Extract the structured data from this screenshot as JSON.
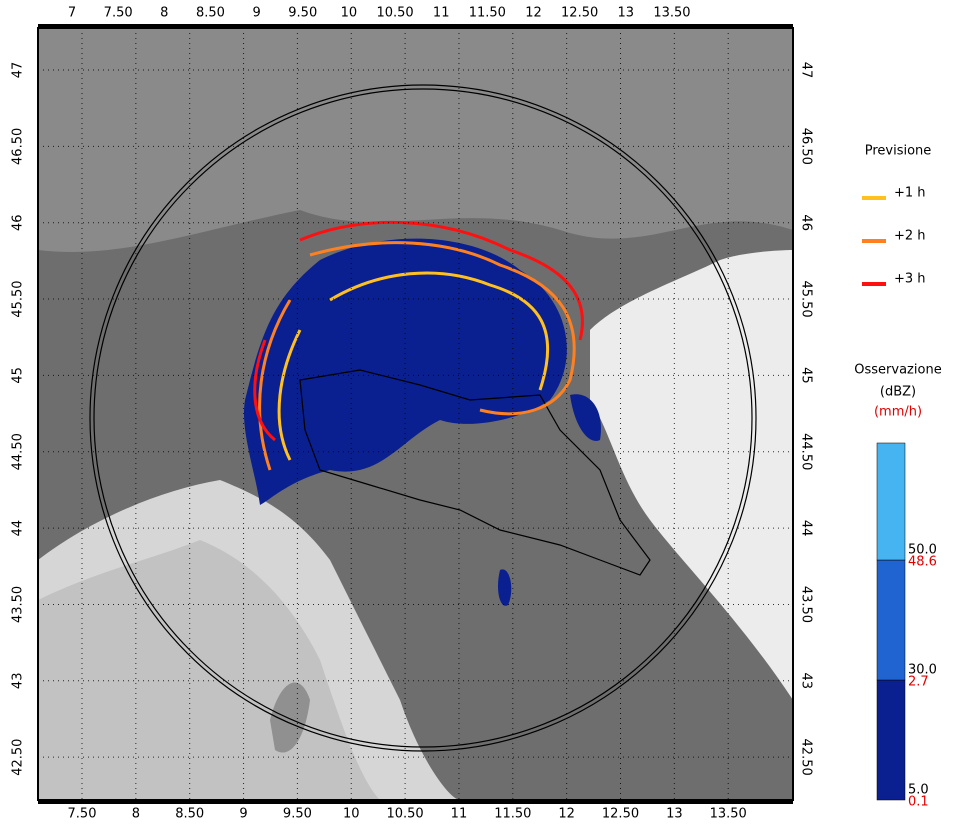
{
  "map": {
    "top_ticks": [
      {
        "value": 7,
        "label": "7"
      },
      {
        "value": 7.5,
        "label": "7.50"
      },
      {
        "value": 8,
        "label": "8"
      },
      {
        "value": 8.5,
        "label": "8.50"
      },
      {
        "value": 9,
        "label": "9"
      },
      {
        "value": 9.5,
        "label": "9.50"
      },
      {
        "value": 10,
        "label": "10"
      },
      {
        "value": 10.5,
        "label": "10.50"
      },
      {
        "value": 11,
        "label": "11"
      },
      {
        "value": 11.5,
        "label": "11.50"
      },
      {
        "value": 12,
        "label": "12"
      },
      {
        "value": 12.5,
        "label": "12.50"
      },
      {
        "value": 13,
        "label": "13"
      },
      {
        "value": 13.5,
        "label": "13.50"
      }
    ],
    "bottom_ticks": [
      {
        "value": 7.5,
        "label": "7.50"
      },
      {
        "value": 8,
        "label": "8"
      },
      {
        "value": 8.5,
        "label": "8.50"
      },
      {
        "value": 9,
        "label": "9"
      },
      {
        "value": 9.5,
        "label": "9.50"
      },
      {
        "value": 10,
        "label": "10"
      },
      {
        "value": 10.5,
        "label": "10.50"
      },
      {
        "value": 11,
        "label": "11"
      },
      {
        "value": 11.5,
        "label": "11.50"
      },
      {
        "value": 12,
        "label": "12"
      },
      {
        "value": 12.5,
        "label": "12.50"
      },
      {
        "value": 13,
        "label": "13"
      },
      {
        "value": 13.5,
        "label": "13.50"
      }
    ],
    "left_ticks": [
      {
        "value": 47,
        "label": "47"
      },
      {
        "value": 46.5,
        "label": "46.50"
      },
      {
        "value": 46,
        "label": "46"
      },
      {
        "value": 45.5,
        "label": "45.50"
      },
      {
        "value": 45,
        "label": "45"
      },
      {
        "value": 44.5,
        "label": "44.50"
      },
      {
        "value": 44,
        "label": "44"
      },
      {
        "value": 43.5,
        "label": "43.50"
      },
      {
        "value": 43,
        "label": "43"
      },
      {
        "value": 42.5,
        "label": "42.50"
      }
    ],
    "right_ticks": [
      {
        "value": 47,
        "label": "47"
      },
      {
        "value": 46.5,
        "label": "46.50"
      },
      {
        "value": 46,
        "label": "46"
      },
      {
        "value": 45.5,
        "label": "45.50"
      },
      {
        "value": 45,
        "label": "45"
      },
      {
        "value": 44.5,
        "label": "44.50"
      },
      {
        "value": 44,
        "label": "44"
      },
      {
        "value": 43.5,
        "label": "43.50"
      },
      {
        "value": 43,
        "label": "43"
      },
      {
        "value": 42.5,
        "label": "42.50"
      }
    ],
    "forecast_legend": {
      "title": "Previsione",
      "items": [
        {
          "label": "+1 h",
          "color": "#ffc020"
        },
        {
          "label": "+2 h",
          "color": "#ff8020"
        },
        {
          "label": "+3 h",
          "color": "#ff1010"
        }
      ]
    },
    "colorbar": {
      "title": "Osservazione",
      "unit_dbz": "(dBZ)",
      "unit_mmh": "(mm/h)",
      "levels": [
        {
          "dbz": "5.0",
          "mmh": "0.1",
          "color": "#0a2090"
        },
        {
          "dbz": "30.0",
          "mmh": "2.7",
          "color": "#1f64d0"
        },
        {
          "dbz": "50.0",
          "mmh": "48.6",
          "color": "#46b4f0"
        }
      ]
    }
  }
}
